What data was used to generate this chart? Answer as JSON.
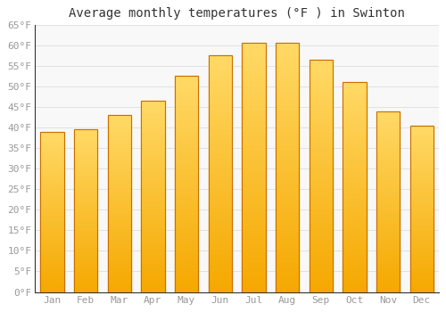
{
  "title": "Average monthly temperatures (°F ) in Swinton",
  "months": [
    "Jan",
    "Feb",
    "Mar",
    "Apr",
    "May",
    "Jun",
    "Jul",
    "Aug",
    "Sep",
    "Oct",
    "Nov",
    "Dec"
  ],
  "values": [
    39,
    39.5,
    43,
    46.5,
    52.5,
    57.5,
    60.5,
    60.5,
    56.5,
    51,
    44,
    40.5
  ],
  "bar_color_light": "#FFD966",
  "bar_color_dark": "#F5A800",
  "bar_edge_color": "#C87000",
  "ylim": [
    0,
    65
  ],
  "yticks": [
    0,
    5,
    10,
    15,
    20,
    25,
    30,
    35,
    40,
    45,
    50,
    55,
    60,
    65
  ],
  "ytick_labels": [
    "0°F",
    "5°F",
    "10°F",
    "15°F",
    "20°F",
    "25°F",
    "30°F",
    "35°F",
    "40°F",
    "45°F",
    "50°F",
    "55°F",
    "60°F",
    "65°F"
  ],
  "grid_color": "#dddddd",
  "bg_color": "#ffffff",
  "plot_bg_color": "#f8f8f8",
  "title_fontsize": 10,
  "tick_fontsize": 8,
  "font_family": "monospace",
  "tick_color": "#999999",
  "spine_color": "#333333"
}
